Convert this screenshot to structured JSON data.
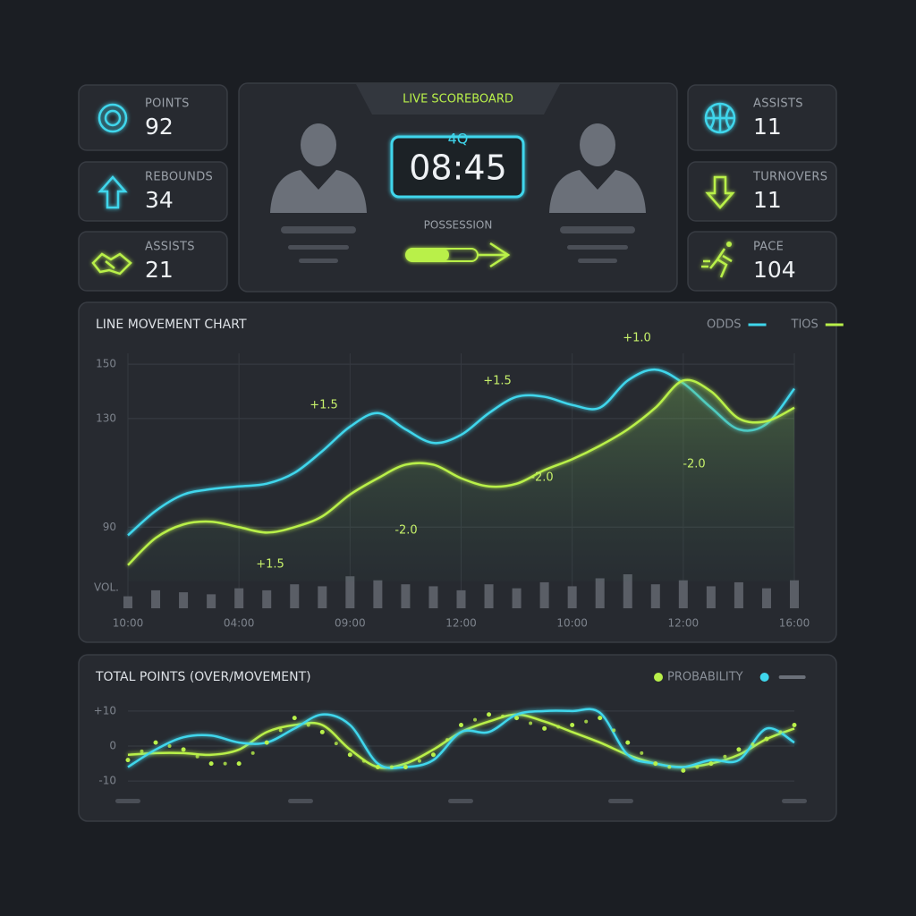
{
  "stats_left": [
    {
      "label": "POINTS",
      "value": "92"
    },
    {
      "label": "REBOUNDS",
      "value": "34"
    },
    {
      "label": "ASSISTS",
      "value": "21"
    }
  ],
  "stats_right": [
    {
      "label": "ASSISTS",
      "value": "11"
    },
    {
      "label": "TURNOVERS",
      "value": "11"
    },
    {
      "label": "PACE",
      "value": "104"
    }
  ],
  "scoreboard": {
    "title": "LIVE SCOREBOARD",
    "period": "4Q",
    "clock": "08:45",
    "possession_label": "POSSESSION"
  },
  "chart_data": [
    {
      "type": "line",
      "title": "LINE MOVEMENT CHART",
      "legend": "top-right",
      "grid": true,
      "categories": [
        "10:00",
        null,
        null,
        null,
        "04:00",
        null,
        null,
        null,
        "09:00",
        null,
        null,
        null,
        "12:00",
        null,
        null,
        null,
        "10:00",
        null,
        null,
        null,
        "12:00",
        null,
        null,
        null,
        "16:00"
      ],
      "series": [
        {
          "name": "ODDS",
          "color": "#3fd6ec",
          "values": [
            87,
            96,
            102,
            104,
            105,
            106,
            110,
            118,
            127,
            132,
            126,
            121,
            124,
            132,
            138,
            138,
            135,
            134,
            144,
            148,
            143,
            134,
            126,
            128,
            141
          ]
        },
        {
          "name": "TIOS",
          "color": "#b9f04a",
          "area": true,
          "values": [
            76,
            86,
            91,
            92,
            90,
            88,
            90,
            94,
            102,
            108,
            113,
            113,
            108,
            105,
            106,
            111,
            115,
            120,
            126,
            134,
            144,
            140,
            130,
            129,
            134
          ]
        }
      ],
      "volume_label": "VOL.",
      "volume": [
        30,
        45,
        40,
        35,
        50,
        45,
        60,
        55,
        80,
        70,
        60,
        55,
        45,
        60,
        50,
        65,
        55,
        75,
        85,
        60,
        70,
        55,
        65,
        50,
        70
      ],
      "annotations": [
        "+1.5",
        "+1.5",
        "+1.0",
        "+1.5",
        "-2.0",
        "-2.0",
        "-2.0"
      ],
      "ylim": [
        70,
        154
      ],
      "yticks": [
        150,
        130,
        90
      ]
    },
    {
      "type": "line",
      "title": "TOTAL POINTS (OVER/MOVEMENT)",
      "legend": "top-right",
      "series": [
        {
          "name": "PROBABILITY",
          "color": "#b9f04a",
          "values": [
            -2.5,
            -2,
            -2,
            -2.5,
            -1,
            4,
            6,
            6,
            -1,
            -6,
            -5,
            -1,
            4,
            7,
            9,
            7,
            4,
            1,
            -2.5,
            -5,
            -6,
            -5,
            -2.5,
            2,
            5
          ]
        },
        {
          "color": "#3fd6ec",
          "values": [
            -6,
            -1,
            2.5,
            3,
            1,
            1,
            5,
            9,
            6,
            -5,
            -6,
            -4,
            4,
            4,
            9,
            10,
            10,
            9.5,
            -2.5,
            -5,
            -6,
            -4,
            -4,
            5,
            1
          ]
        },
        {
          "color": "#b9f04a",
          "dotted": true,
          "values": [
            -4,
            1,
            -1,
            -5,
            -5,
            1,
            8,
            4,
            -2.5,
            -6,
            -6,
            -2.5,
            6,
            9,
            8,
            5,
            6,
            8,
            1,
            -5,
            -7,
            -5,
            -1,
            2,
            6
          ]
        }
      ],
      "ylim": [
        -12,
        12
      ],
      "yticks": [
        {
          "value": 10,
          "label": "+10"
        },
        0,
        -10
      ]
    }
  ]
}
